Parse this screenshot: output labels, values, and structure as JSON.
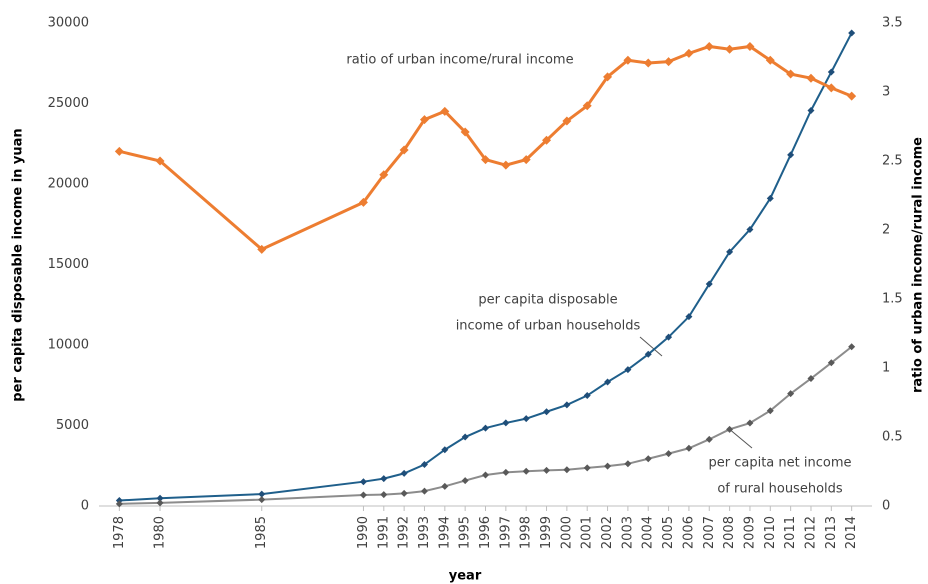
{
  "chart_data": {
    "type": "line",
    "x_label": "year",
    "y_label": "per capita disposable income in yuan",
    "y2_label": "ratio of urban income/rural income",
    "x": [
      1978,
      1980,
      1985,
      1990,
      1991,
      1992,
      1993,
      1994,
      1995,
      1996,
      1997,
      1998,
      1999,
      2000,
      2001,
      2002,
      2003,
      2004,
      2005,
      2006,
      2007,
      2008,
      2009,
      2010,
      2011,
      2012,
      2013,
      2014
    ],
    "xlim": [
      1977,
      2015
    ],
    "xticks": [
      1978,
      1980,
      1985,
      1990,
      1991,
      1992,
      1993,
      1994,
      1995,
      1996,
      1997,
      1998,
      1999,
      2000,
      2001,
      2002,
      2003,
      2004,
      2005,
      2006,
      2007,
      2008,
      2009,
      2010,
      2011,
      2012,
      2013,
      2014
    ],
    "ylim": [
      0,
      30000
    ],
    "yticks": [
      0,
      5000,
      10000,
      15000,
      20000,
      25000,
      30000
    ],
    "y2lim": [
      0,
      3.5
    ],
    "y2ticks": [
      0,
      0.5,
      1,
      1.5,
      2,
      2.5,
      3,
      3.5
    ],
    "grid": false,
    "series": [
      {
        "label_lines": [
          "per capita disposable",
          "income of urban households"
        ],
        "color": "#1f5f8b",
        "marker_color": "#1f4e79",
        "values": [
          343,
          478,
          739,
          1510,
          1701,
          2027,
          2577,
          3496,
          4283,
          4839,
          5160,
          5425,
          5854,
          6280,
          6860,
          7703,
          8472,
          9422,
          10493,
          11759,
          13786,
          15781,
          17175,
          19109,
          21810,
          24565,
          26955,
          29381
        ]
      },
      {
        "label_lines": [
          "per capita net income",
          "of rural households"
        ],
        "color": "#8c8c8c",
        "marker_color": "#595959",
        "values": [
          134,
          191,
          398,
          686,
          709,
          784,
          922,
          1221,
          1578,
          1926,
          2090,
          2162,
          2210,
          2253,
          2366,
          2476,
          2622,
          2936,
          3255,
          3587,
          4140,
          4761,
          5153,
          5919,
          6977,
          7917,
          8896,
          9892
        ]
      },
      {
        "label_lines": [
          "ratio of urban income/rural income"
        ],
        "color": "#ed7d31",
        "marker_color": "#ed7d31",
        "axis": "y2",
        "values": [
          2.57,
          2.5,
          1.86,
          2.2,
          2.4,
          2.58,
          2.8,
          2.86,
          2.71,
          2.51,
          2.47,
          2.51,
          2.65,
          2.79,
          2.9,
          3.11,
          3.23,
          3.21,
          3.22,
          3.28,
          3.33,
          3.31,
          3.33,
          3.23,
          3.13,
          3.1,
          3.03,
          2.97
        ]
      }
    ]
  }
}
